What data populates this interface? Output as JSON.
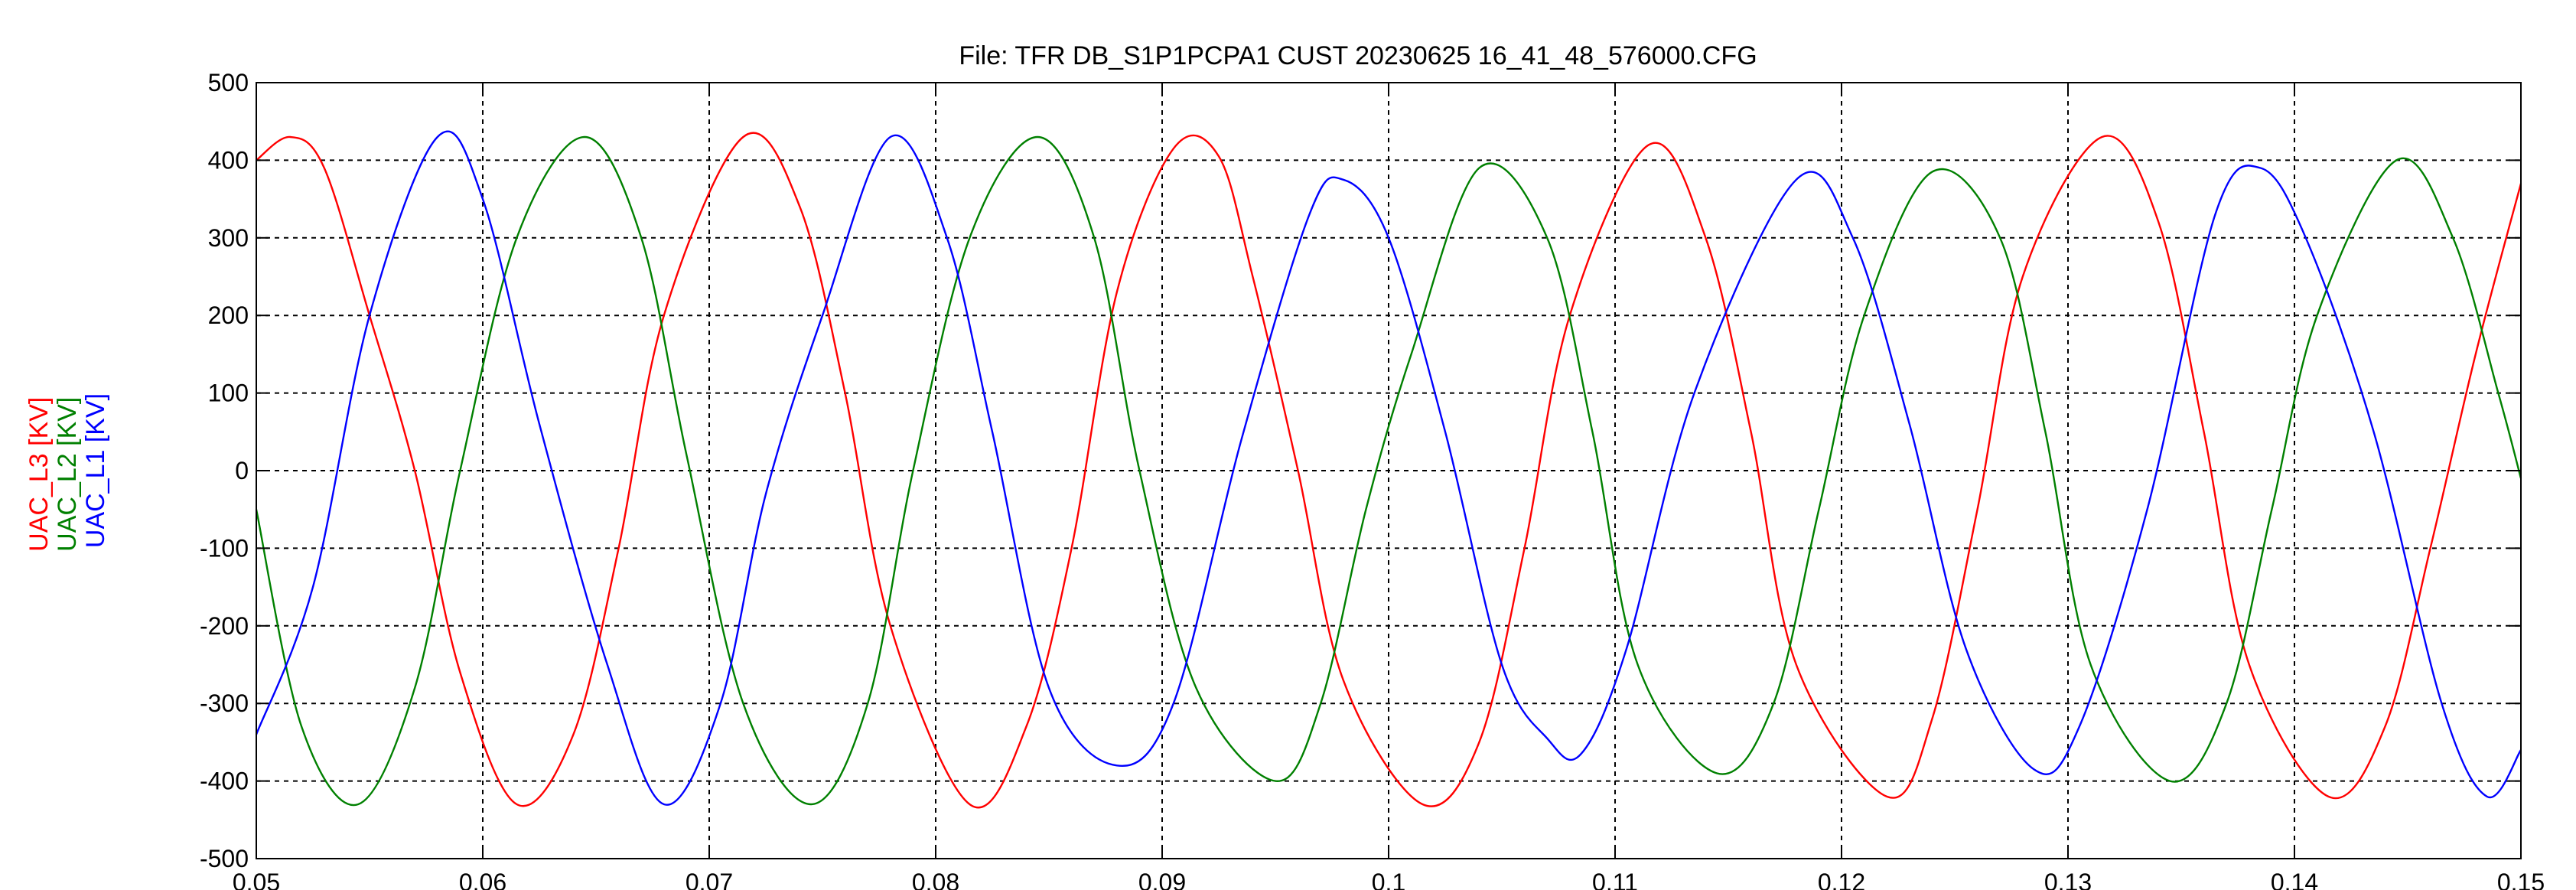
{
  "chart_data": {
    "type": "line",
    "title": "File: TFR DB_S1P1PCPA1 CUST 20230625 16_41_48_576000.CFG",
    "xlabel": "",
    "ylabel_parts": [
      {
        "text": "UAC_L3 [KV]",
        "color": "#ff0000"
      },
      {
        "text": "UAC_L2 [KV]",
        "color": "#008000"
      },
      {
        "text": "UAC_L1 [KV]",
        "color": "#0000ff"
      }
    ],
    "xlim": [
      0.05,
      0.15
    ],
    "ylim": [
      -500,
      500
    ],
    "xticks": [
      "0.05",
      "0.06",
      "0.07",
      "0.08",
      "0.09",
      "0.1",
      "0.11",
      "0.12",
      "0.13",
      "0.14",
      "0.15"
    ],
    "yticks": [
      "500",
      "400",
      "300",
      "200",
      "100",
      "0",
      "-100",
      "-200",
      "-300",
      "-400",
      "-500"
    ],
    "grid": true,
    "series": [
      {
        "name": "UAC_L3 [KV]",
        "color": "#ff0000",
        "x": [
          0.05,
          0.0515,
          0.053,
          0.055,
          0.057,
          0.059,
          0.0615,
          0.064,
          0.066,
          0.068,
          0.0715,
          0.074,
          0.076,
          0.078,
          0.0815,
          0.084,
          0.086,
          0.088,
          0.0905,
          0.0925,
          0.094,
          0.096,
          0.098,
          0.1015,
          0.104,
          0.106,
          0.108,
          0.1115,
          0.114,
          0.116,
          0.118,
          0.122,
          0.124,
          0.126,
          0.128,
          0.1315,
          0.134,
          0.136,
          0.138,
          0.1415,
          0.144,
          0.146,
          0.148,
          0.15
        ],
        "values": [
          400,
          430,
          390,
          200,
          0,
          -260,
          -430,
          -340,
          -100,
          200,
          430,
          340,
          100,
          -200,
          -430,
          -330,
          -100,
          230,
          415,
          405,
          250,
          0,
          -270,
          -430,
          -350,
          -100,
          200,
          420,
          300,
          50,
          -250,
          -420,
          -320,
          -50,
          250,
          430,
          320,
          50,
          -250,
          -420,
          -330,
          -100,
          150,
          370
        ]
      },
      {
        "name": "UAC_L2 [KV]",
        "color": "#008000",
        "x": [
          0.05,
          0.052,
          0.0545,
          0.057,
          0.059,
          0.0615,
          0.0645,
          0.067,
          0.069,
          0.0715,
          0.0745,
          0.077,
          0.079,
          0.0815,
          0.0845,
          0.087,
          0.089,
          0.0915,
          0.095,
          0.097,
          0.099,
          0.101,
          0.104,
          0.107,
          0.109,
          0.111,
          0.1145,
          0.117,
          0.119,
          0.121,
          0.124,
          0.127,
          0.129,
          0.131,
          0.1345,
          0.137,
          0.139,
          0.141,
          0.1445,
          0.147,
          0.149,
          0.15
        ],
        "values": [
          -50,
          -330,
          -430,
          -280,
          0,
          300,
          430,
          300,
          20,
          -300,
          -430,
          -300,
          0,
          300,
          430,
          300,
          0,
          -280,
          -400,
          -300,
          -50,
          150,
          390,
          300,
          50,
          -250,
          -390,
          -300,
          -50,
          200,
          385,
          300,
          50,
          -250,
          -400,
          -300,
          -50,
          200,
          400,
          300,
          100,
          -10
        ]
      },
      {
        "name": "UAC_L1 [KV]",
        "color": "#0000ff",
        "x": [
          0.05,
          0.0525,
          0.055,
          0.058,
          0.06,
          0.0625,
          0.0655,
          0.068,
          0.0705,
          0.0725,
          0.075,
          0.078,
          0.0805,
          0.0825,
          0.085,
          0.088,
          0.0905,
          0.0935,
          0.0965,
          0.098,
          0.1,
          0.1025,
          0.105,
          0.107,
          0.1085,
          0.1105,
          0.1135,
          0.118,
          0.1205,
          0.123,
          0.1255,
          0.1285,
          0.1305,
          0.1335,
          0.1365,
          0.1385,
          0.1405,
          0.1435,
          0.1465,
          0.1485,
          0.15
        ],
        "values": [
          -340,
          -150,
          200,
          430,
          350,
          60,
          -250,
          -430,
          -300,
          -30,
          200,
          430,
          300,
          50,
          -280,
          -380,
          -300,
          40,
          330,
          375,
          300,
          50,
          -250,
          -345,
          -365,
          -230,
          100,
          375,
          300,
          60,
          -230,
          -385,
          -330,
          -50,
          330,
          390,
          300,
          50,
          -300,
          -420,
          -360
        ]
      }
    ]
  }
}
